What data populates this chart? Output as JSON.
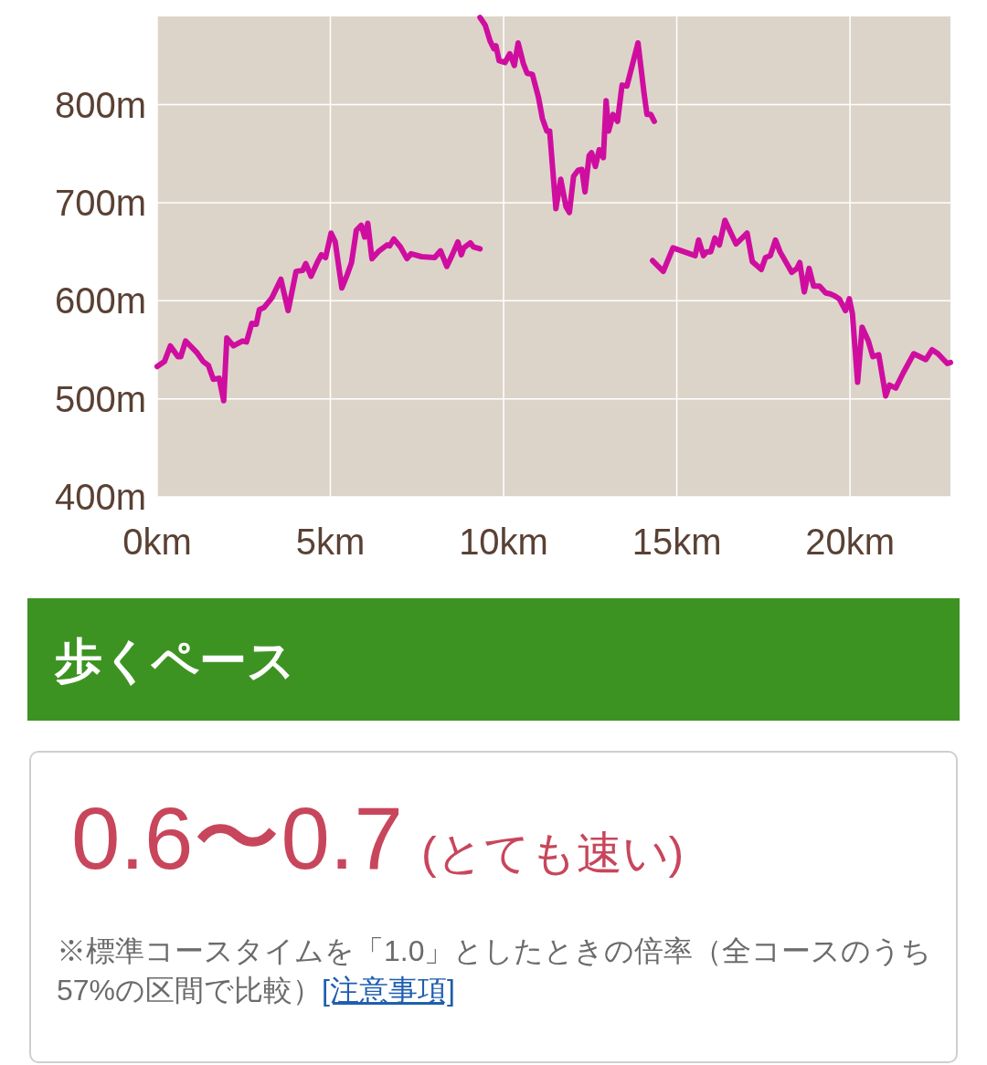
{
  "chart_data": [
    {
      "type": "line",
      "xlim": [
        0,
        22.9
      ],
      "xticks": [
        {
          "value": 0,
          "label": "0km"
        },
        {
          "value": 5,
          "label": "5km"
        },
        {
          "value": 10,
          "label": "10km"
        },
        {
          "value": 15,
          "label": "15km"
        },
        {
          "value": 20,
          "label": "20km"
        }
      ],
      "ylim": [
        400,
        890
      ],
      "yticks": [
        {
          "value": 400,
          "label": "400m"
        },
        {
          "value": 500,
          "label": "500m"
        },
        {
          "value": 600,
          "label": "600m"
        },
        {
          "value": 700,
          "label": "700m"
        },
        {
          "value": 800,
          "label": "800m"
        }
      ],
      "grid": true,
      "series": [
        {
          "color": "#cf0ea0",
          "x": [
            0,
            0.21,
            0.38,
            0.6,
            0.68,
            0.82,
            1.15,
            1.33,
            1.48,
            1.62,
            1.79,
            1.92,
            2.01,
            2.2,
            2.46,
            2.58,
            2.73,
            2.86,
            2.95,
            3.08,
            3.31,
            3.57,
            3.78,
            4.01,
            4.2,
            4.29,
            4.44,
            4.62,
            4.74,
            4.86,
            5.02,
            5.14,
            5.33,
            5.49,
            5.61,
            5.75,
            5.89,
            5.99,
            6.08,
            6.2,
            6.41,
            6.64,
            6.71,
            6.83,
            7.02,
            7.21,
            7.33,
            7.63,
            8.01,
            8.18,
            8.36,
            8.52,
            8.68,
            8.78,
            8.85,
            9.04,
            9.13,
            9.32
          ],
          "values": [
            533,
            538,
            554,
            543,
            543,
            559,
            547,
            538,
            534,
            520,
            521,
            498,
            562,
            554,
            559,
            558,
            577,
            576,
            591,
            593,
            603,
            622,
            590,
            630,
            631,
            638,
            625,
            639,
            647,
            644,
            669,
            660,
            613,
            627,
            639,
            672,
            677,
            665,
            679,
            643,
            651,
            657,
            656,
            663,
            655,
            643,
            648,
            645,
            644,
            651,
            635,
            647,
            660,
            647,
            654,
            659,
            655,
            653
          ]
        },
        {
          "color": "#cf0ea0",
          "x": [
            9.32,
            9.47,
            9.61,
            9.72,
            9.78,
            9.87,
            10.04,
            10.18,
            10.31,
            10.42,
            10.57,
            10.68,
            10.83,
            11.01,
            11.12,
            11.25,
            11.33,
            11.51,
            11.65,
            11.8,
            11.9,
            12.02,
            12.15,
            12.26,
            12.35,
            12.47,
            12.54,
            12.65,
            12.76,
            12.88,
            12.96,
            13.03,
            13.16,
            13.29,
            13.42,
            13.56,
            13.88,
            14.05,
            14.14,
            14.25,
            14.35
          ],
          "values": [
            889,
            881,
            865,
            857,
            860,
            845,
            843,
            852,
            840,
            863,
            842,
            832,
            831,
            807,
            786,
            773,
            773,
            694,
            724,
            696,
            690,
            727,
            733,
            734,
            711,
            748,
            751,
            737,
            754,
            746,
            804,
            773,
            790,
            783,
            820,
            819,
            863,
            813,
            790,
            790,
            783
          ]
        },
        {
          "color": "#cf0ea0",
          "x": [
            14.3,
            14.61,
            14.89,
            15.53,
            15.63,
            15.77,
            15.86,
            15.98,
            16.1,
            16.23,
            16.39,
            16.71,
            17.03,
            17.18,
            17.44,
            17.56,
            17.7,
            17.85,
            17.98,
            18.32,
            18.47,
            18.55,
            18.68,
            18.82,
            18.95,
            19.12,
            19.3,
            19.43,
            19.56,
            19.69,
            19.87,
            19.98,
            20.07,
            20.22,
            20.35,
            20.53,
            20.66,
            20.83,
            21.03,
            21.14,
            21.32,
            21.53,
            21.84,
            22.19,
            22.37,
            22.54,
            22.81,
            22.9
          ],
          "values": [
            641,
            630,
            654,
            646,
            662,
            646,
            650,
            650,
            664,
            657,
            682,
            658,
            669,
            640,
            632,
            644,
            646,
            662,
            650,
            629,
            633,
            639,
            609,
            633,
            615,
            615,
            608,
            607,
            605,
            602,
            590,
            602,
            587,
            517,
            573,
            559,
            543,
            545,
            503,
            514,
            511,
            526,
            546,
            540,
            550,
            546,
            536,
            537
          ]
        }
      ]
    },
    {
      "type": "other",
      "title": "歩くペース",
      "annotations": [
        "0.6〜0.7",
        "(とても速い)",
        "※標準コースタイムを「1.0」としたときの倍率（全コースのうち57%の区間で比較）",
        "[注意事項]"
      ]
    }
  ]
}
